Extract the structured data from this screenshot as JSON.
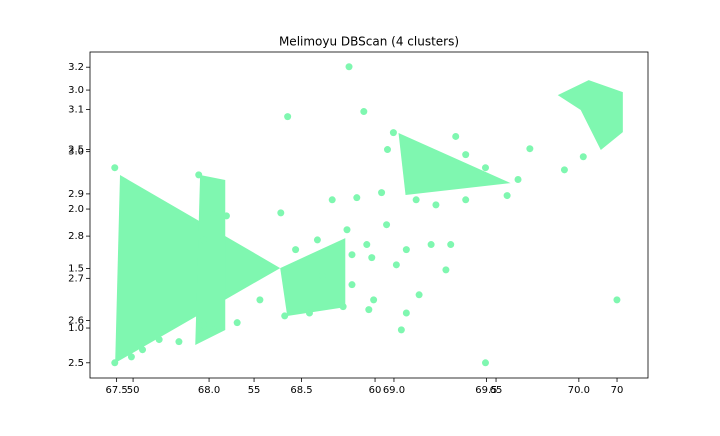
{
  "chart_data": {
    "type": "scatter",
    "title": "Melimoyu DBScan (4 clusters)",
    "xlim": [
      67.356,
      70.374
    ],
    "ylim": [
      2.464,
      3.236
    ],
    "xticks": [
      67.5,
      {
        "value": 68,
        "label": "68.0"
      },
      68.5,
      {
        "value": 69,
        "label": "69.0"
      },
      69.5,
      {
        "value": 70,
        "label": "70.0"
      }
    ],
    "yticks": [
      2.5,
      2.6,
      2.7,
      2.8,
      2.9,
      {
        "value": 3,
        "label": "3.0"
      },
      3.1,
      3.2
    ],
    "x2lim": [
      48.22,
      71.28
    ],
    "y2lim": [
      0.58,
      3.32
    ],
    "x2ticks": [
      50,
      55,
      60,
      65,
      70
    ],
    "y2ticks": [
      {
        "value": 1,
        "label": "1.0"
      },
      1.5,
      {
        "value": 2,
        "label": "2.0"
      },
      2.5,
      {
        "value": 3,
        "label": "3.0"
      }
    ],
    "series": [
      {
        "color": "#7ff7b0",
        "x": [
          67.49,
          67.49,
          67.58,
          67.64,
          68.757,
          68.837,
          68.425,
          68.965,
          68.997,
          69.334,
          69.735,
          69.922,
          70.024,
          70.206,
          69.495,
          69.04,
          68.275,
          68.388,
          68.152,
          68.468,
          68.612,
          68.773,
          68.89,
          68.864,
          69.067,
          69.136,
          68.666,
          68.799,
          68.933,
          69.12,
          69.227,
          69.388,
          69.612,
          69.671,
          69.495,
          69.388,
          68.746,
          68.853,
          68.96,
          69.067,
          69.201,
          69.307,
          69.281,
          69.013,
          68.773,
          68.88,
          68.586,
          68.543,
          68.725,
          68.409,
          67.944,
          68.024,
          68.094,
          67.971,
          67.971,
          68.024,
          67.837,
          67.73
        ],
        "values": [
          2.962,
          2.5,
          2.514,
          2.531,
          3.201,
          3.095,
          3.083,
          3.005,
          3.045,
          3.036,
          3.007,
          2.957,
          2.988,
          2.649,
          2.5,
          2.578,
          2.649,
          2.855,
          2.595,
          2.768,
          2.706,
          2.685,
          2.649,
          2.626,
          2.618,
          2.661,
          2.886,
          2.891,
          2.903,
          2.886,
          2.874,
          2.886,
          2.896,
          2.934,
          2.962,
          2.993,
          2.815,
          2.78,
          2.827,
          2.768,
          2.78,
          2.78,
          2.72,
          2.732,
          2.756,
          2.749,
          2.791,
          2.618,
          2.633,
          2.611,
          2.945,
          2.851,
          2.848,
          2.791,
          2.59,
          2.578,
          2.55,
          2.555
        ]
      }
    ],
    "polygons": [
      {
        "axis": "y2",
        "color": "#7ff7b0",
        "x": [
          49.46,
          56.08,
          49.26
        ],
        "values": [
          2.286,
          1.504,
          0.706
        ]
      },
      {
        "axis": "y2",
        "color": "#7ff7b0",
        "x": [
          56.08,
          58.77,
          58.77,
          56.37
        ],
        "values": [
          1.504,
          1.756,
          1.176,
          1.101
        ]
      },
      {
        "axis": "y2",
        "color": "#7ff7b0",
        "x": [
          60.97,
          65.6,
          61.26
        ],
        "values": [
          2.639,
          2.218,
          2.118
        ]
      },
      {
        "axis": "y2",
        "color": "#7ff7b0",
        "x": [
          67.55,
          68.83,
          70.24,
          70.24,
          69.33,
          68.5
        ],
        "values": [
          2.958,
          3.084,
          2.983,
          2.647,
          2.496,
          2.832
        ]
      },
      {
        "axis": "y2",
        "color": "#7ff7b0",
        "x": [
          52.77,
          53.81,
          53.81,
          52.57
        ],
        "values": [
          2.286,
          2.244,
          0.983,
          0.857
        ]
      }
    ]
  }
}
